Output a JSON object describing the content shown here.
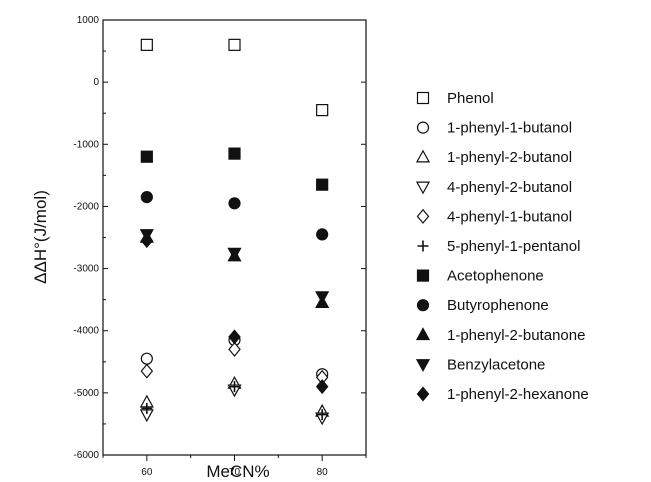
{
  "chart_data": {
    "type": "scatter",
    "title": "",
    "xlabel": "MeCN%",
    "ylabel": "ΔΔH°(J/mol)",
    "x": [
      60,
      70,
      80
    ],
    "x_ticks": [
      "60",
      "70",
      "80"
    ],
    "xlim": [
      55,
      85
    ],
    "y_ticks": [
      "1000",
      "0",
      "-1000",
      "-2000",
      "-3000",
      "-4000",
      "-5000",
      "-6000"
    ],
    "ylim": [
      -6000,
      1000
    ],
    "grid": false,
    "legend_position": "right",
    "series": [
      {
        "name": "Phenol",
        "marker": "square-open",
        "values": [
          600,
          600,
          -450
        ]
      },
      {
        "name": "1-phenyl-1-butanol",
        "marker": "circle-open",
        "values": [
          -4450,
          -4150,
          -4700
        ]
      },
      {
        "name": "1-phenyl-2-butanol",
        "marker": "triangle-up-open",
        "values": [
          -5150,
          -4850,
          -5300
        ]
      },
      {
        "name": "4-phenyl-2-butanol",
        "marker": "triangle-down-open",
        "values": [
          -5350,
          -4950,
          -5400
        ]
      },
      {
        "name": "4-phenyl-1-butanol",
        "marker": "diamond-open",
        "values": [
          -4650,
          -4300,
          -4750
        ]
      },
      {
        "name": "5-phenyl-1-pentanol",
        "marker": "plus",
        "values": [
          -5250,
          -4900,
          -5350
        ]
      },
      {
        "name": "Acetophenone",
        "marker": "square-filled",
        "values": [
          -1200,
          -1150,
          -1650
        ]
      },
      {
        "name": "Butyrophenone",
        "marker": "circle-filled",
        "values": [
          -1850,
          -1950,
          -2450
        ]
      },
      {
        "name": "1-phenyl-2-butanone",
        "marker": "triangle-up-filled",
        "values": [
          -2500,
          -2800,
          -3550
        ]
      },
      {
        "name": "Benzylacetone",
        "marker": "triangle-down-filled",
        "values": [
          -2450,
          -2750,
          -3450
        ]
      },
      {
        "name": "1-phenyl-2-hexanone",
        "marker": "diamond-filled",
        "values": [
          -2550,
          -4100,
          -4900
        ]
      }
    ]
  }
}
